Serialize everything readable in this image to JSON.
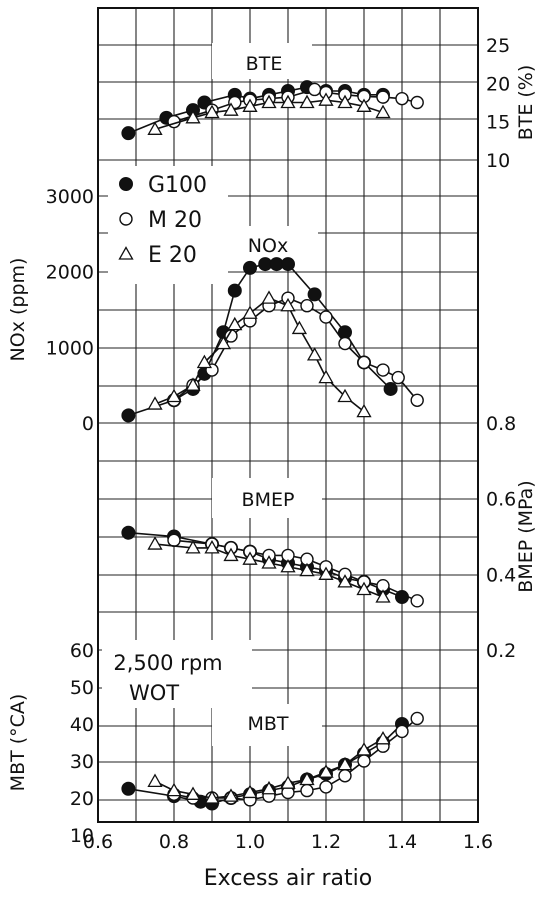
{
  "chart_data": {
    "type": "line",
    "xlabel": "Excess air ratio",
    "x_ticks": [
      "0.6",
      "0.8",
      "1.0",
      "1.2",
      "1.4",
      "1.6"
    ],
    "xlim": [
      0.6,
      1.6
    ],
    "legend": [
      {
        "marker": "filled-circle",
        "label": "G100"
      },
      {
        "marker": "open-circle",
        "label": "M 20"
      },
      {
        "marker": "open-triangle",
        "label": "E 20"
      }
    ],
    "legend_position": "upper-left",
    "annotation": [
      "2,500 rpm",
      "WOT"
    ],
    "grid": true,
    "panels": [
      {
        "id": "BTE",
        "title": "BTE",
        "axis_label": "BTE (%)",
        "axis_side": "right",
        "ticks": [
          "25",
          "20",
          "15",
          "10"
        ],
        "ylim": [
          10,
          25
        ],
        "series": [
          {
            "name": "G100",
            "x": [
              0.68,
              0.78,
              0.85,
              0.88,
              0.96,
              1.0,
              1.05,
              1.1,
              1.15,
              1.2,
              1.25,
              1.3,
              1.35
            ],
            "y": [
              13.5,
              15.5,
              16.5,
              17.5,
              18.5,
              18.0,
              18.5,
              19.0,
              19.5,
              19.0,
              19.0,
              18.5,
              18.5
            ]
          },
          {
            "name": "M 20",
            "x": [
              0.8,
              0.9,
              0.96,
              1.0,
              1.05,
              1.1,
              1.17,
              1.2,
              1.25,
              1.3,
              1.35,
              1.4,
              1.44
            ],
            "y": [
              15.0,
              16.5,
              17.5,
              17.8,
              18.0,
              18.2,
              19.2,
              18.8,
              18.5,
              18.3,
              18.2,
              18.0,
              17.5
            ]
          },
          {
            "name": "E 20",
            "x": [
              0.75,
              0.85,
              0.9,
              0.95,
              1.0,
              1.05,
              1.1,
              1.15,
              1.2,
              1.25,
              1.3,
              1.35
            ],
            "y": [
              14.0,
              15.5,
              16.2,
              16.5,
              17.0,
              17.5,
              17.5,
              17.5,
              17.8,
              17.5,
              17.0,
              16.2
            ]
          }
        ]
      },
      {
        "id": "NOx",
        "title": "NOx",
        "axis_label": "NOx (ppm)",
        "axis_side": "left",
        "ticks": [
          "3000",
          "2000",
          "1000",
          "0"
        ],
        "ylim": [
          0,
          3000
        ],
        "series": [
          {
            "name": "G100",
            "x": [
              0.68,
              0.8,
              0.85,
              0.88,
              0.93,
              0.96,
              1.0,
              1.04,
              1.07,
              1.1,
              1.17,
              1.25,
              1.3,
              1.37
            ],
            "y": [
              100,
              300,
              450,
              650,
              1200,
              1750,
              2050,
              2100,
              2100,
              2100,
              1700,
              1200,
              800,
              450
            ]
          },
          {
            "name": "M 20",
            "x": [
              0.8,
              0.85,
              0.9,
              0.95,
              1.0,
              1.05,
              1.1,
              1.15,
              1.2,
              1.25,
              1.3,
              1.35,
              1.39,
              1.44
            ],
            "y": [
              300,
              500,
              700,
              1150,
              1350,
              1550,
              1650,
              1550,
              1400,
              1050,
              800,
              700,
              600,
              300
            ]
          },
          {
            "name": "E 20",
            "x": [
              0.75,
              0.8,
              0.85,
              0.88,
              0.93,
              0.96,
              1.0,
              1.05,
              1.1,
              1.13,
              1.17,
              1.2,
              1.25,
              1.3
            ],
            "y": [
              250,
              350,
              500,
              800,
              1050,
              1300,
              1450,
              1650,
              1550,
              1250,
              900,
              600,
              350,
              150
            ]
          }
        ]
      },
      {
        "id": "BMEP",
        "title": "BMEP",
        "axis_label": "BMEP (MPa)",
        "axis_side": "right",
        "ticks": [
          "0.8",
          "0.6",
          "0.4",
          "0.2"
        ],
        "ylim": [
          0.2,
          0.8
        ],
        "series": [
          {
            "name": "G100",
            "x": [
              0.68,
              0.8,
              0.9,
              0.95,
              1.0,
              1.05,
              1.1,
              1.15,
              1.2,
              1.25,
              1.3,
              1.35,
              1.4
            ],
            "y": [
              0.51,
              0.5,
              0.48,
              0.47,
              0.46,
              0.44,
              0.43,
              0.42,
              0.41,
              0.39,
              0.38,
              0.36,
              0.34
            ]
          },
          {
            "name": "M 20",
            "x": [
              0.8,
              0.9,
              0.95,
              1.0,
              1.05,
              1.1,
              1.15,
              1.2,
              1.25,
              1.3,
              1.35,
              1.44
            ],
            "y": [
              0.49,
              0.48,
              0.47,
              0.46,
              0.45,
              0.45,
              0.44,
              0.42,
              0.4,
              0.38,
              0.37,
              0.33
            ]
          },
          {
            "name": "E 20",
            "x": [
              0.75,
              0.85,
              0.9,
              0.95,
              1.0,
              1.05,
              1.1,
              1.15,
              1.2,
              1.25,
              1.3,
              1.35
            ],
            "y": [
              0.48,
              0.47,
              0.47,
              0.45,
              0.44,
              0.43,
              0.42,
              0.41,
              0.4,
              0.38,
              0.36,
              0.34
            ]
          }
        ]
      },
      {
        "id": "MBT",
        "title": "MBT",
        "axis_label": "MBT (°CA)",
        "axis_side": "left",
        "ticks": [
          "60",
          "50",
          "40",
          "30",
          "20",
          "10"
        ],
        "ylim": [
          10,
          60
        ],
        "series": [
          {
            "name": "G100",
            "x": [
              0.68,
              0.8,
              0.87,
              0.9,
              0.95,
              1.0,
              1.05,
              1.1,
              1.15,
              1.2,
              1.25,
              1.3,
              1.35,
              1.4
            ],
            "y": [
              22.5,
              20.5,
              19.0,
              18.5,
              20.0,
              21.0,
              22.0,
              23.0,
              25.0,
              26.5,
              29.0,
              32.0,
              35.0,
              40.0
            ]
          },
          {
            "name": "M 20",
            "x": [
              0.8,
              0.85,
              0.9,
              0.95,
              1.0,
              1.05,
              1.1,
              1.15,
              1.2,
              1.25,
              1.3,
              1.35,
              1.4,
              1.44
            ],
            "y": [
              21.0,
              20.0,
              20.0,
              20.0,
              19.5,
              20.5,
              21.5,
              22.0,
              23.0,
              26.0,
              30.0,
              34.0,
              38.0,
              41.5
            ]
          },
          {
            "name": "E 20",
            "x": [
              0.75,
              0.8,
              0.85,
              0.9,
              0.95,
              1.0,
              1.05,
              1.1,
              1.15,
              1.2,
              1.25,
              1.3,
              1.35
            ],
            "y": [
              24.5,
              22.0,
              21.0,
              20.0,
              20.5,
              21.5,
              22.5,
              24.0,
              25.0,
              27.0,
              29.0,
              33.0,
              36.0
            ]
          }
        ]
      }
    ]
  },
  "colors": {
    "ink": "#111111",
    "grid": "#222222",
    "background": "#ffffff"
  }
}
